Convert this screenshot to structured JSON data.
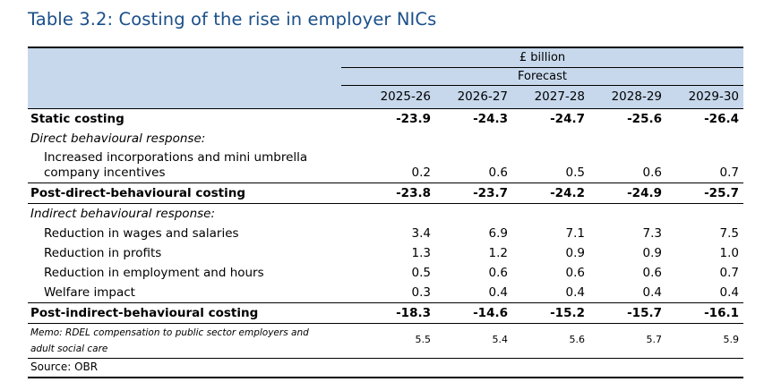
{
  "title": "Table 3.2: Costing of the rise in employer NICs",
  "header": {
    "unit": "£ billion",
    "period_label": "Forecast",
    "years": [
      "2025-26",
      "2026-27",
      "2027-28",
      "2028-29",
      "2029-30"
    ]
  },
  "rows": {
    "static": {
      "label": "Static costing",
      "values": [
        "-23.9",
        "-24.3",
        "-24.7",
        "-25.6",
        "-26.4"
      ]
    },
    "direct_heading": {
      "label": "Direct behavioural response:"
    },
    "incorporations": {
      "label": "Increased incorporations and mini umbrella company incentives",
      "values": [
        "0.2",
        "0.6",
        "0.5",
        "0.6",
        "0.7"
      ]
    },
    "post_direct": {
      "label": "Post-direct-behavioural costing",
      "values": [
        "-23.8",
        "-23.7",
        "-24.2",
        "-24.9",
        "-25.7"
      ]
    },
    "indirect_heading": {
      "label": "Indirect behavioural response:"
    },
    "wages": {
      "label": "Reduction in wages and salaries",
      "values": [
        "3.4",
        "6.9",
        "7.1",
        "7.3",
        "7.5"
      ]
    },
    "profits": {
      "label": "Reduction in profits",
      "values": [
        "1.3",
        "1.2",
        "0.9",
        "0.9",
        "1.0"
      ]
    },
    "employment": {
      "label": "Reduction in employment and hours",
      "values": [
        "0.5",
        "0.6",
        "0.6",
        "0.6",
        "0.7"
      ]
    },
    "welfare": {
      "label": "Welfare impact",
      "values": [
        "0.3",
        "0.4",
        "0.4",
        "0.4",
        "0.4"
      ]
    },
    "post_indirect": {
      "label": "Post-indirect-behavioural costing",
      "values": [
        "-18.3",
        "-14.6",
        "-15.2",
        "-15.7",
        "-16.1"
      ]
    },
    "memo": {
      "label": "Memo: RDEL compensation to public sector employers and adult social care",
      "values": [
        "5.5",
        "5.4",
        "5.6",
        "5.7",
        "5.9"
      ]
    }
  },
  "source": "Source: OBR",
  "colors": {
    "title": "#1b4f8a",
    "header_bg": "#c7d8ec"
  }
}
